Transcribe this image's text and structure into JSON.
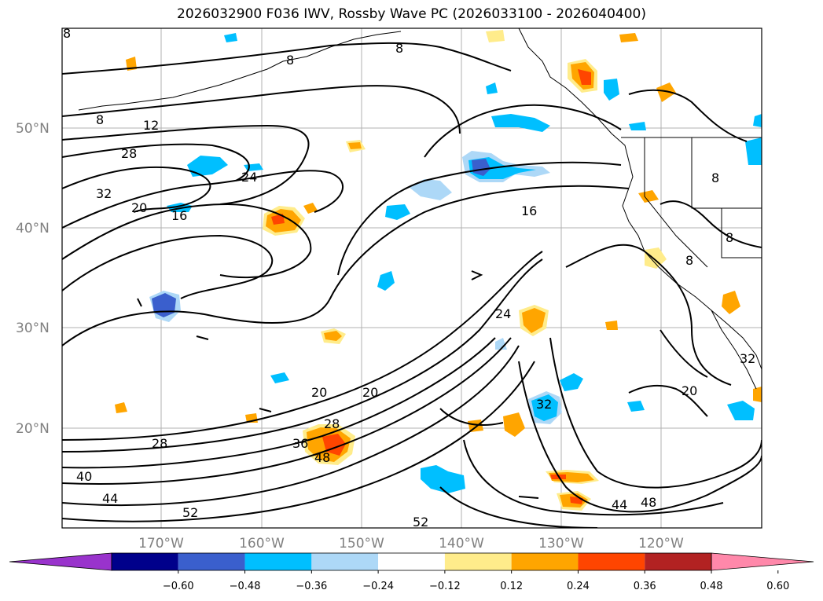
{
  "title": "2026032900 F036 IWV, Rossby Wave PC (2026033100 - 2026040400)",
  "map": {
    "lat_labels": [
      "50°N",
      "40°N",
      "30°N",
      "20°N"
    ],
    "lon_labels": [
      "170°W",
      "160°W",
      "150°W",
      "140°W",
      "130°W",
      "120°W"
    ],
    "contour_labels": [
      "8",
      "8",
      "8",
      "12",
      "28",
      "24",
      "32",
      "20",
      "16",
      "16",
      "24",
      "8",
      "8",
      "8",
      "28",
      "20",
      "20",
      "28",
      "36",
      "48",
      "40",
      "44",
      "52",
      "32",
      "44",
      "48",
      "52",
      "20",
      "32",
      "8"
    ]
  },
  "colorbar": {
    "ticks": [
      "−0.60",
      "−0.48",
      "−0.36",
      "−0.24",
      "−0.12",
      "0.12",
      "0.24",
      "0.36",
      "0.48",
      "0.60"
    ],
    "colors": [
      "#9933cc",
      "#00008b",
      "#3a5fcd",
      "#00bfff",
      "#add8f7",
      "#ffffff",
      "#ffec8b",
      "#ffa500",
      "#ff4500",
      "#b22222",
      "#ff88aa"
    ]
  },
  "colors": {
    "neg_strong": "#3a5fcd",
    "neg_mid": "#00bfff",
    "neg_weak": "#add8f7",
    "pos_weak": "#ffec8b",
    "pos_mid": "#ffa500",
    "pos_strong": "#ff4500"
  }
}
